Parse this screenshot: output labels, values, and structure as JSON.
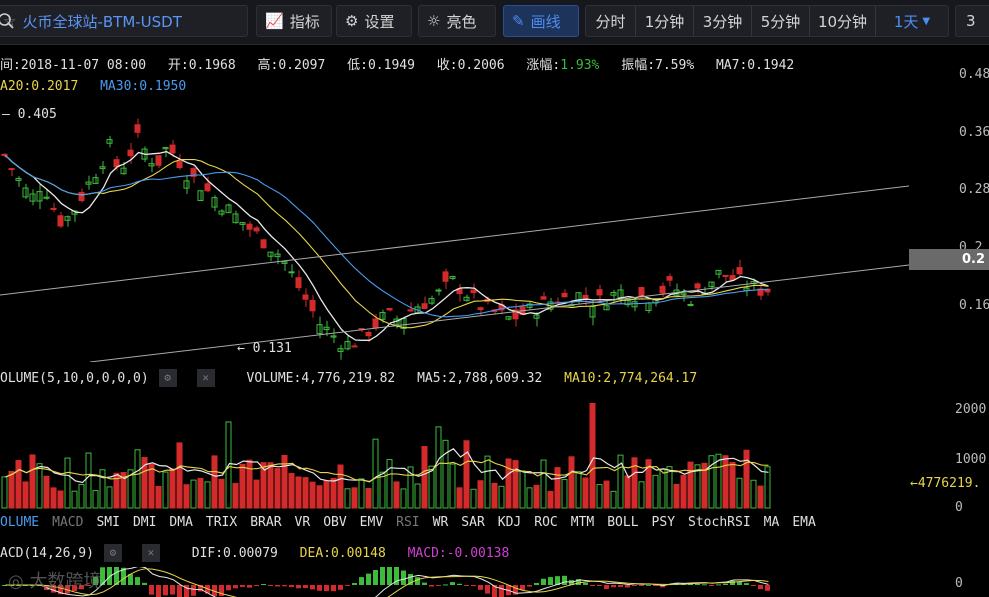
{
  "toolbar": {
    "search_text": "火币全球站-BTM-USDT",
    "indicator_label": "指标",
    "settings_label": "设置",
    "bright_label": "亮色",
    "draw_label": "画线",
    "periods": [
      "分时",
      "1分钟",
      "3分钟",
      "5分钟",
      "10分钟",
      "1天"
    ],
    "active_period": "1天",
    "right_cut": "3"
  },
  "info": {
    "time": "间:2018-11-07 08:00",
    "open": "开:0.1968",
    "high": "高:0.2097",
    "low": "低:0.1949",
    "close": "收:0.2006",
    "change_label": "涨幅:",
    "change_value": "1.93%",
    "amplitude": "振幅:7.59%",
    "ma7": "MA7:0.1942",
    "ma20": "A20:0.2017",
    "ma30": "MA30:0.1950"
  },
  "price_axis": [
    "0.48",
    "0.36",
    "0.28",
    "0.2",
    "0.16"
  ],
  "current_price_tag": "0.2",
  "price_markers": {
    "high": "0.405",
    "low": "0.131"
  },
  "volume": {
    "title": "OLUME(5,10,0,0,0,0)",
    "volume": "VOLUME:4,776,219.82",
    "ma5": "MA5:2,788,609.32",
    "ma10": "MA10:2,774,264.17",
    "axis": [
      "2000",
      "1000",
      "0"
    ],
    "tag": "4776219."
  },
  "indicator_tabs": [
    "VOLUME",
    "MACD",
    "SMI",
    "DMI",
    "DMA",
    "TRIX",
    "BRAR",
    "VR",
    "OBV",
    "EMV",
    "RSI",
    "WR",
    "SAR",
    "KDJ",
    "ROC",
    "MTM",
    "BOLL",
    "PSY",
    "StochRSI",
    "MA",
    "EMA"
  ],
  "macd": {
    "title": "ACD(14,26,9)",
    "dif": "DIF:0.00079",
    "dea": "DEA:0.00148",
    "macd": "MACD:-0.00138",
    "axis": "0"
  },
  "watermark": "大数跨境",
  "colors": {
    "up": "#3dbb3d",
    "down": "#d32b2b",
    "ma_white": "#e8e8e8",
    "ma_yellow": "#e8d54a",
    "ma_blue": "#4b9bf0",
    "accent": "#4e8ef4"
  },
  "chart_data": {
    "type": "candlestick",
    "close_prices_approx": [
      0.36,
      0.34,
      0.32,
      0.31,
      0.33,
      0.3,
      0.28,
      0.29,
      0.31,
      0.33,
      0.35,
      0.37,
      0.34,
      0.36,
      0.38,
      0.36,
      0.35,
      0.37,
      0.36,
      0.34,
      0.33,
      0.32,
      0.31,
      0.3,
      0.29,
      0.28,
      0.27,
      0.26,
      0.25,
      0.24,
      0.22,
      0.2,
      0.18,
      0.16,
      0.15,
      0.14,
      0.135,
      0.14,
      0.15,
      0.16,
      0.17,
      0.165,
      0.17,
      0.18,
      0.185,
      0.19,
      0.2,
      0.21,
      0.2,
      0.19,
      0.18,
      0.175,
      0.17,
      0.165,
      0.17,
      0.175,
      0.18,
      0.185,
      0.19,
      0.19,
      0.195,
      0.19,
      0.185,
      0.19,
      0.195,
      0.2,
      0.195,
      0.19,
      0.195,
      0.2,
      0.205,
      0.195,
      0.19,
      0.2,
      0.21,
      0.22,
      0.215,
      0.21,
      0.205,
      0.2,
      0.2006
    ],
    "volume_axis": [
      "2000",
      "1000",
      "0"
    ]
  }
}
